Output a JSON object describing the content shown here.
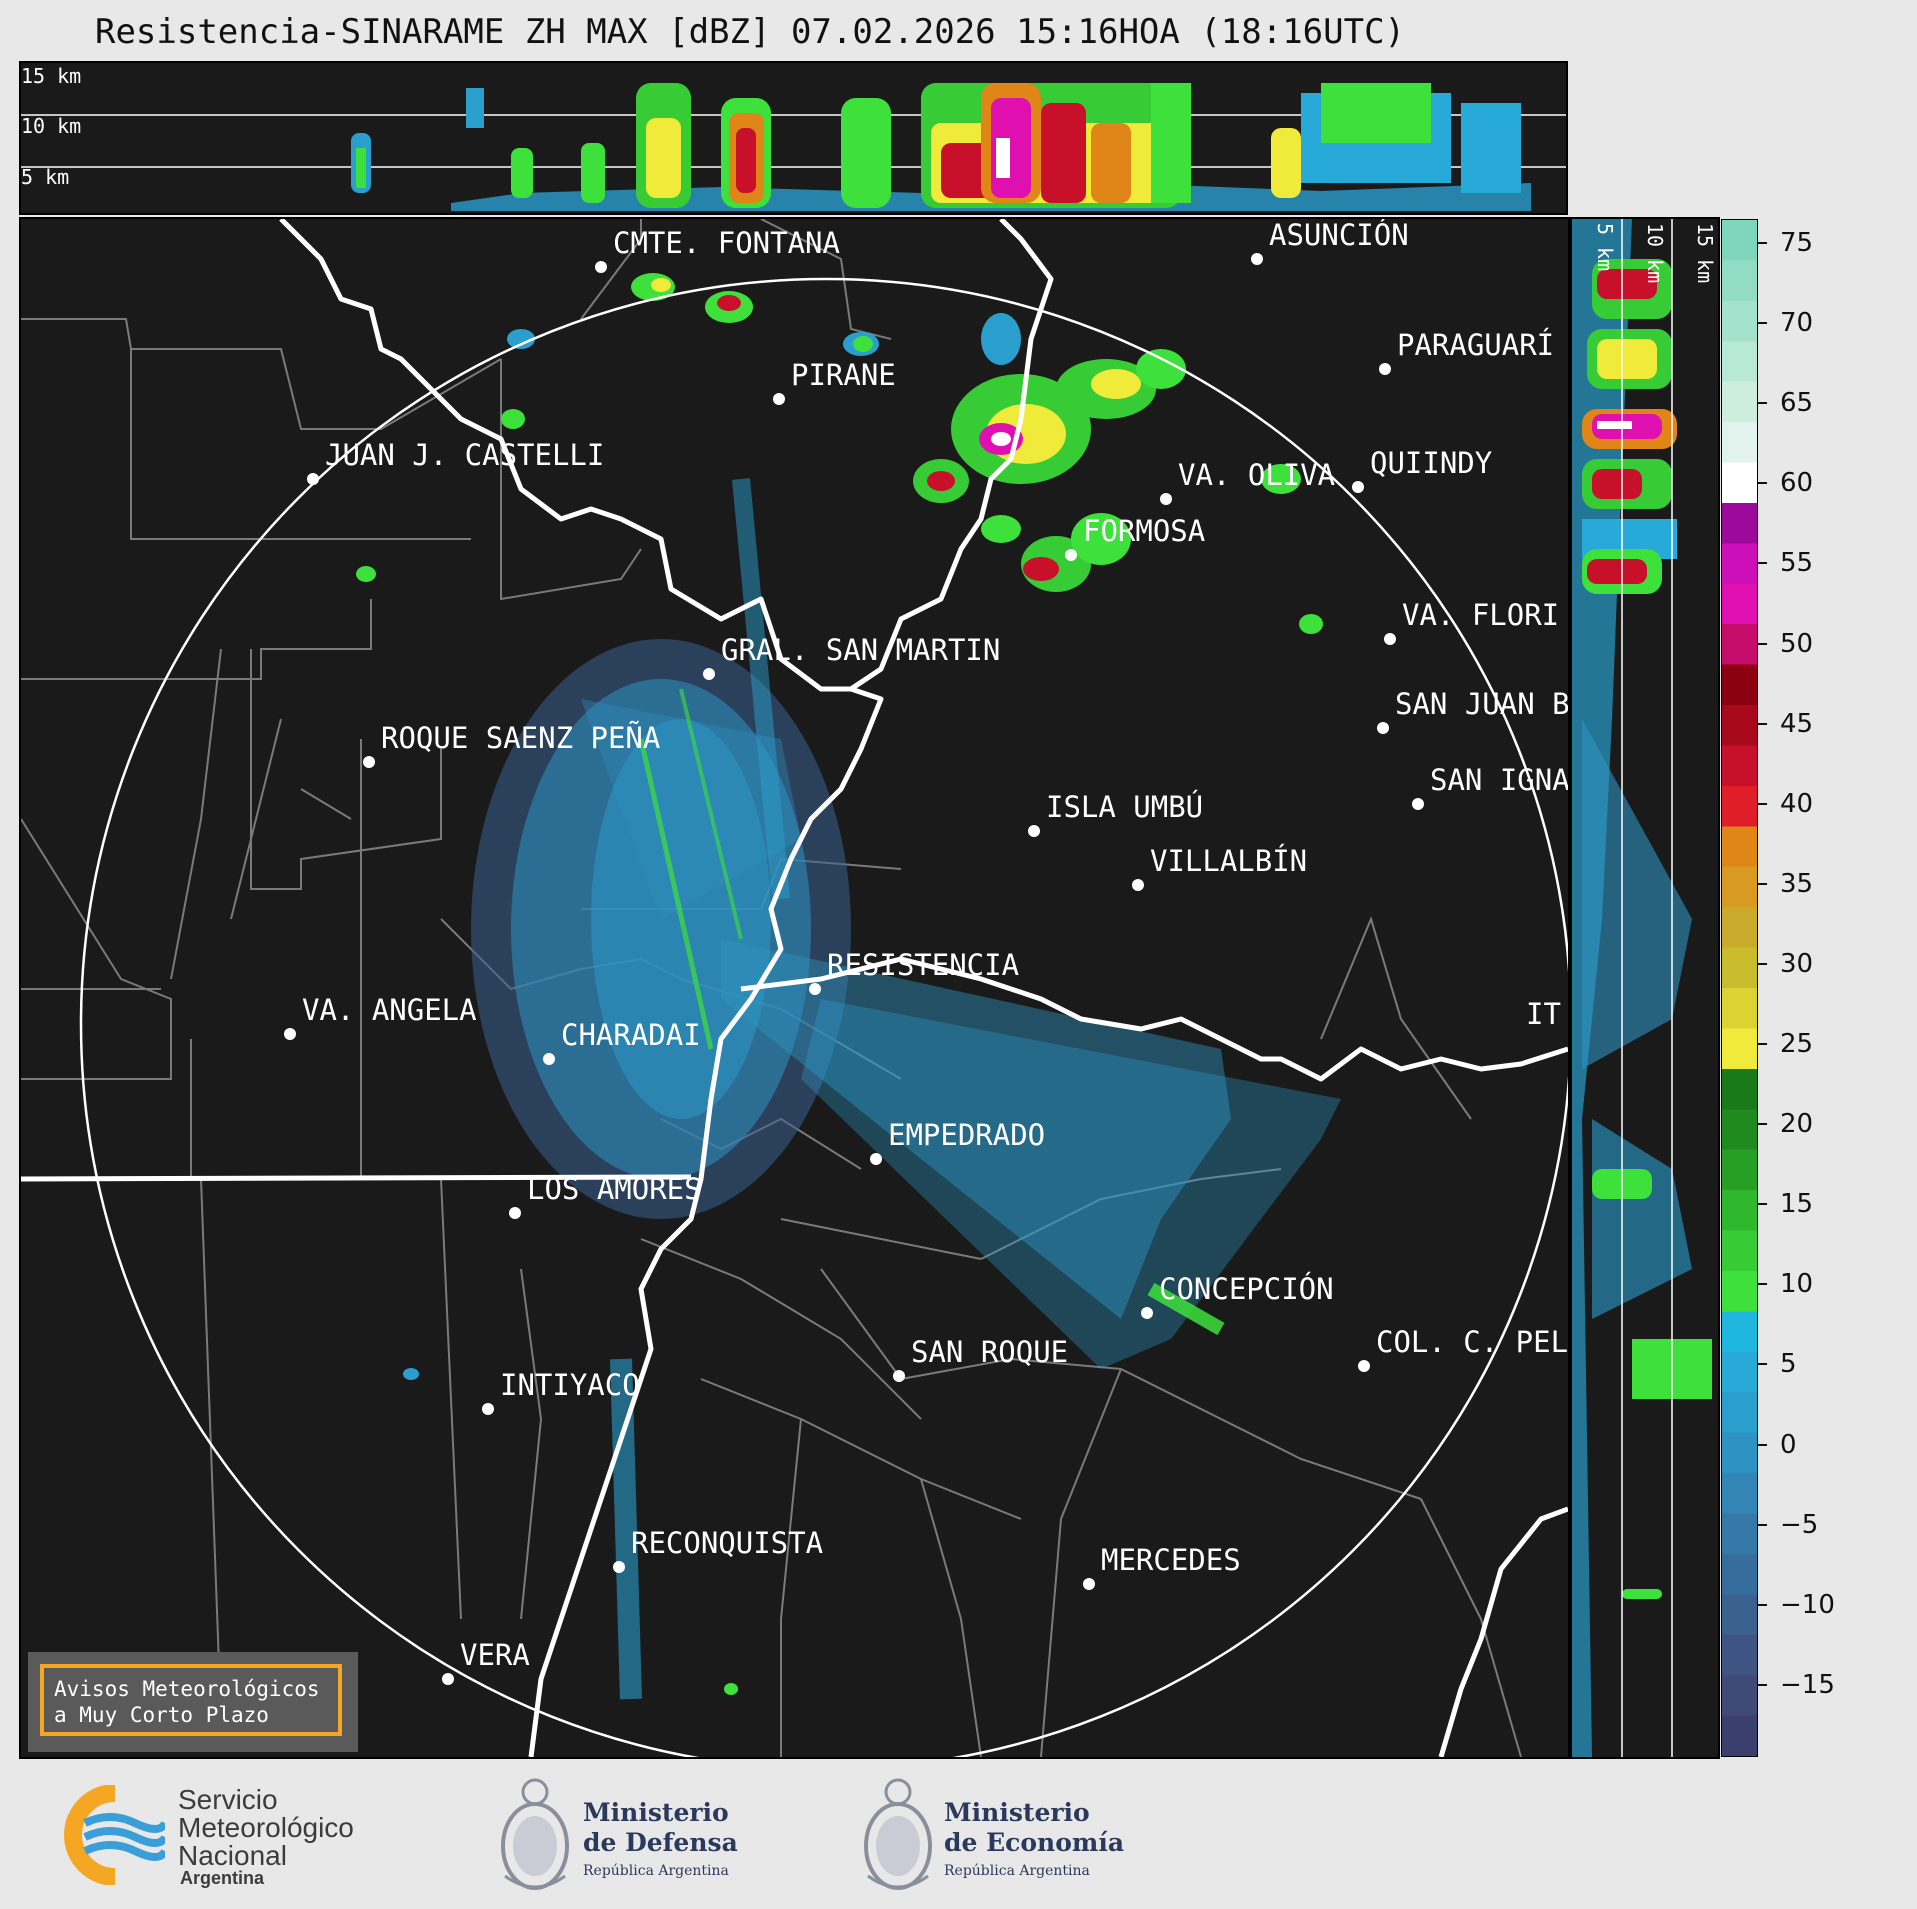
{
  "title": "Resistencia-SINARAME ZH MAX [dBZ] 07.02.2026 15:16HOA (18:16UTC)",
  "height_labels": [
    "15 km",
    "10 km",
    "5 km"
  ],
  "cities": [
    {
      "name": "CMTE. FONTANA"
    },
    {
      "name": "ASUNCIÓN"
    },
    {
      "name": "PARAGUARÍ"
    },
    {
      "name": "PIRANE"
    },
    {
      "name": "JUAN J. CASTELLI"
    },
    {
      "name": "VA. OLIVA"
    },
    {
      "name": "QUIINDY"
    },
    {
      "name": "FORMOSA"
    },
    {
      "name": "VA. FLORI"
    },
    {
      "name": "GRAL. SAN MARTIN"
    },
    {
      "name": "SAN JUAN B"
    },
    {
      "name": "ROQUE SAENZ PEÑA"
    },
    {
      "name": "SAN IGNA"
    },
    {
      "name": "ISLA UMBÚ"
    },
    {
      "name": "VILLALBÍN"
    },
    {
      "name": "RESISTENCIA"
    },
    {
      "name": "VA. ANGELA"
    },
    {
      "name": "CHARADAI"
    },
    {
      "name": "IT"
    },
    {
      "name": "EMPEDRADO"
    },
    {
      "name": "LOS AMORES"
    },
    {
      "name": "CONCEPCIÓN"
    },
    {
      "name": "COL. C. PEL"
    },
    {
      "name": "SAN ROQUE"
    },
    {
      "name": "INTIYACO"
    },
    {
      "name": "RECONQUISTA"
    },
    {
      "name": "MERCEDES"
    },
    {
      "name": "VERA"
    }
  ],
  "colorbar": {
    "ticks": [
      "75",
      "70",
      "65",
      "60",
      "55",
      "50",
      "45",
      "40",
      "35",
      "30",
      "25",
      "20",
      "15",
      "10",
      "5",
      "0",
      "−5",
      "−10",
      "−15"
    ],
    "segments": [
      "#3b3f6e",
      "#3f4a78",
      "#3e5583",
      "#3a6190",
      "#376d9c",
      "#3479a8",
      "#3385b5",
      "#2e92c2",
      "#2a9ecd",
      "#28aad8",
      "#1fb7e0",
      "#3ee03b",
      "#37cc35",
      "#2fb82e",
      "#279f27",
      "#208a20",
      "#1a7a1a",
      "#f0ea3a",
      "#dcd332",
      "#c9bd2e",
      "#c9aa2a",
      "#d89a22",
      "#e08518",
      "#e01e2a",
      "#c8102a",
      "#a80a1c",
      "#8c0010",
      "#c60d6b",
      "#e010b0",
      "#cc0fb8",
      "#9c0a9c",
      "#ffffff",
      "#e2f2ec",
      "#cdeedd",
      "#b8e8d6",
      "#a5e2cd",
      "#92dcc4",
      "#80d6bb"
    ]
  },
  "notice": {
    "line1": "Avisos Meteorológicos",
    "line2": "a Muy Corto Plazo"
  },
  "footer": {
    "smn": [
      "Servicio",
      "Meteorológico",
      "Nacional"
    ],
    "smn_country": "Argentina",
    "defensa": [
      "Ministerio",
      "de Defensa"
    ],
    "economia": [
      "Ministerio",
      "de Economía"
    ],
    "republica": "República Argentina"
  }
}
